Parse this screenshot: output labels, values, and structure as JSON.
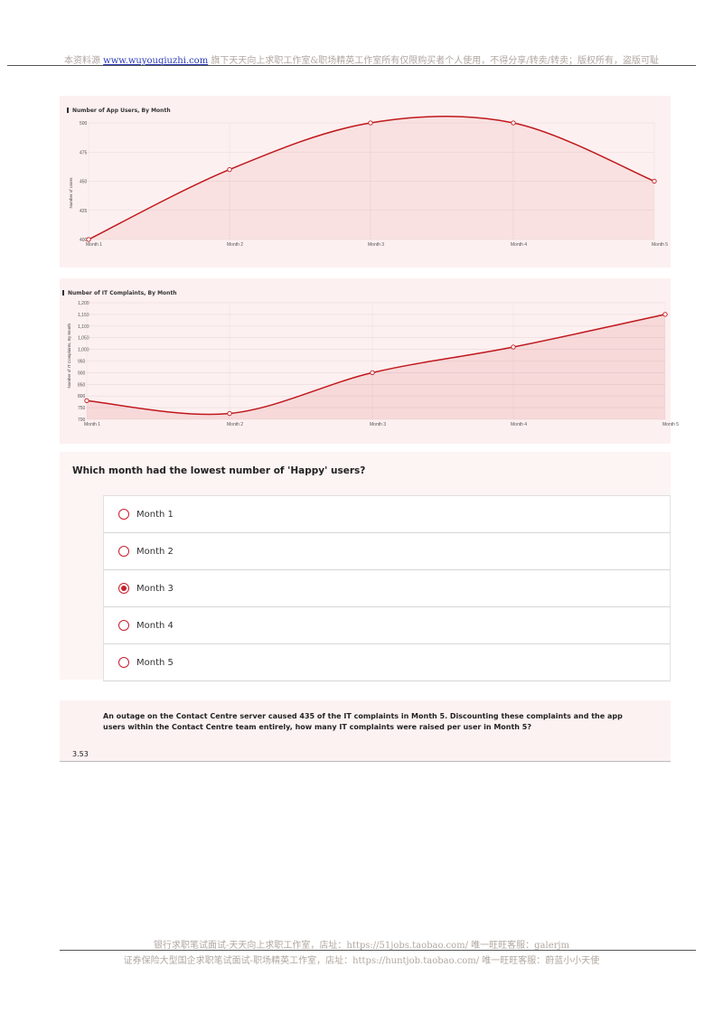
{
  "header": {
    "prefix": "本资料源 ",
    "link": "www.wuyouqiuzhi.com",
    "suffix": " 旗下天天向上求职工作室&职场精英工作室所有仅限购买者个人使用，不得分享/转卖/转卖；版权所有，盗版可耻"
  },
  "chart_data": [
    {
      "type": "line",
      "title": "Number of App Users, By Month",
      "ylabel": "Number of Users",
      "categories": [
        "Month 1",
        "Month 2",
        "Month 3",
        "Month 4",
        "Month 5"
      ],
      "y_ticks": [
        "400",
        "425",
        "450",
        "475",
        "500"
      ],
      "ylim": [
        400,
        500
      ],
      "values": [
        400,
        460,
        500,
        500,
        450
      ],
      "color": "#c0181c"
    },
    {
      "type": "area",
      "title": "Number of IT Complaints, By Month",
      "ylabel": "Number of IT Complaints, By Month",
      "categories": [
        "Month 1",
        "Month 2",
        "Month 3",
        "Month 4",
        "Month 5"
      ],
      "y_ticks": [
        "700",
        "750",
        "800",
        "850",
        "900",
        "950",
        "1,000",
        "1,050",
        "1,100",
        "1,150",
        "1,200"
      ],
      "ylim": [
        700,
        1200
      ],
      "values": [
        780,
        725,
        900,
        1010,
        1150
      ],
      "color": "#c0181c"
    }
  ],
  "question1": {
    "text": "Which month had the lowest number of 'Happy' users?",
    "options": [
      "Month 1",
      "Month 2",
      "Month 3",
      "Month 4",
      "Month 5"
    ],
    "selected_index": 2
  },
  "question2": {
    "text": "An outage on the Contact Centre server caused 435 of the IT complaints in Month 5. Discounting these complaints and the app users within the Contact Centre team entirely, how many IT complaints were raised per user in Month 5?",
    "answer": "3.53"
  },
  "footer": {
    "line1_prefix": "银行求职笔试面试-天天向上求职工作室，店址：",
    "line1_link": "https://51jobs.taobao.com/",
    "line1_suffix": " 唯一旺旺客服：galerjm",
    "line2_prefix": "证券保险大型国企求职笔试面试-职场精英工作室，店址：",
    "line2_link": "https://huntjob.taobao.com/",
    "line2_suffix": " 唯一旺旺客服：蔚蓝小小天使"
  }
}
